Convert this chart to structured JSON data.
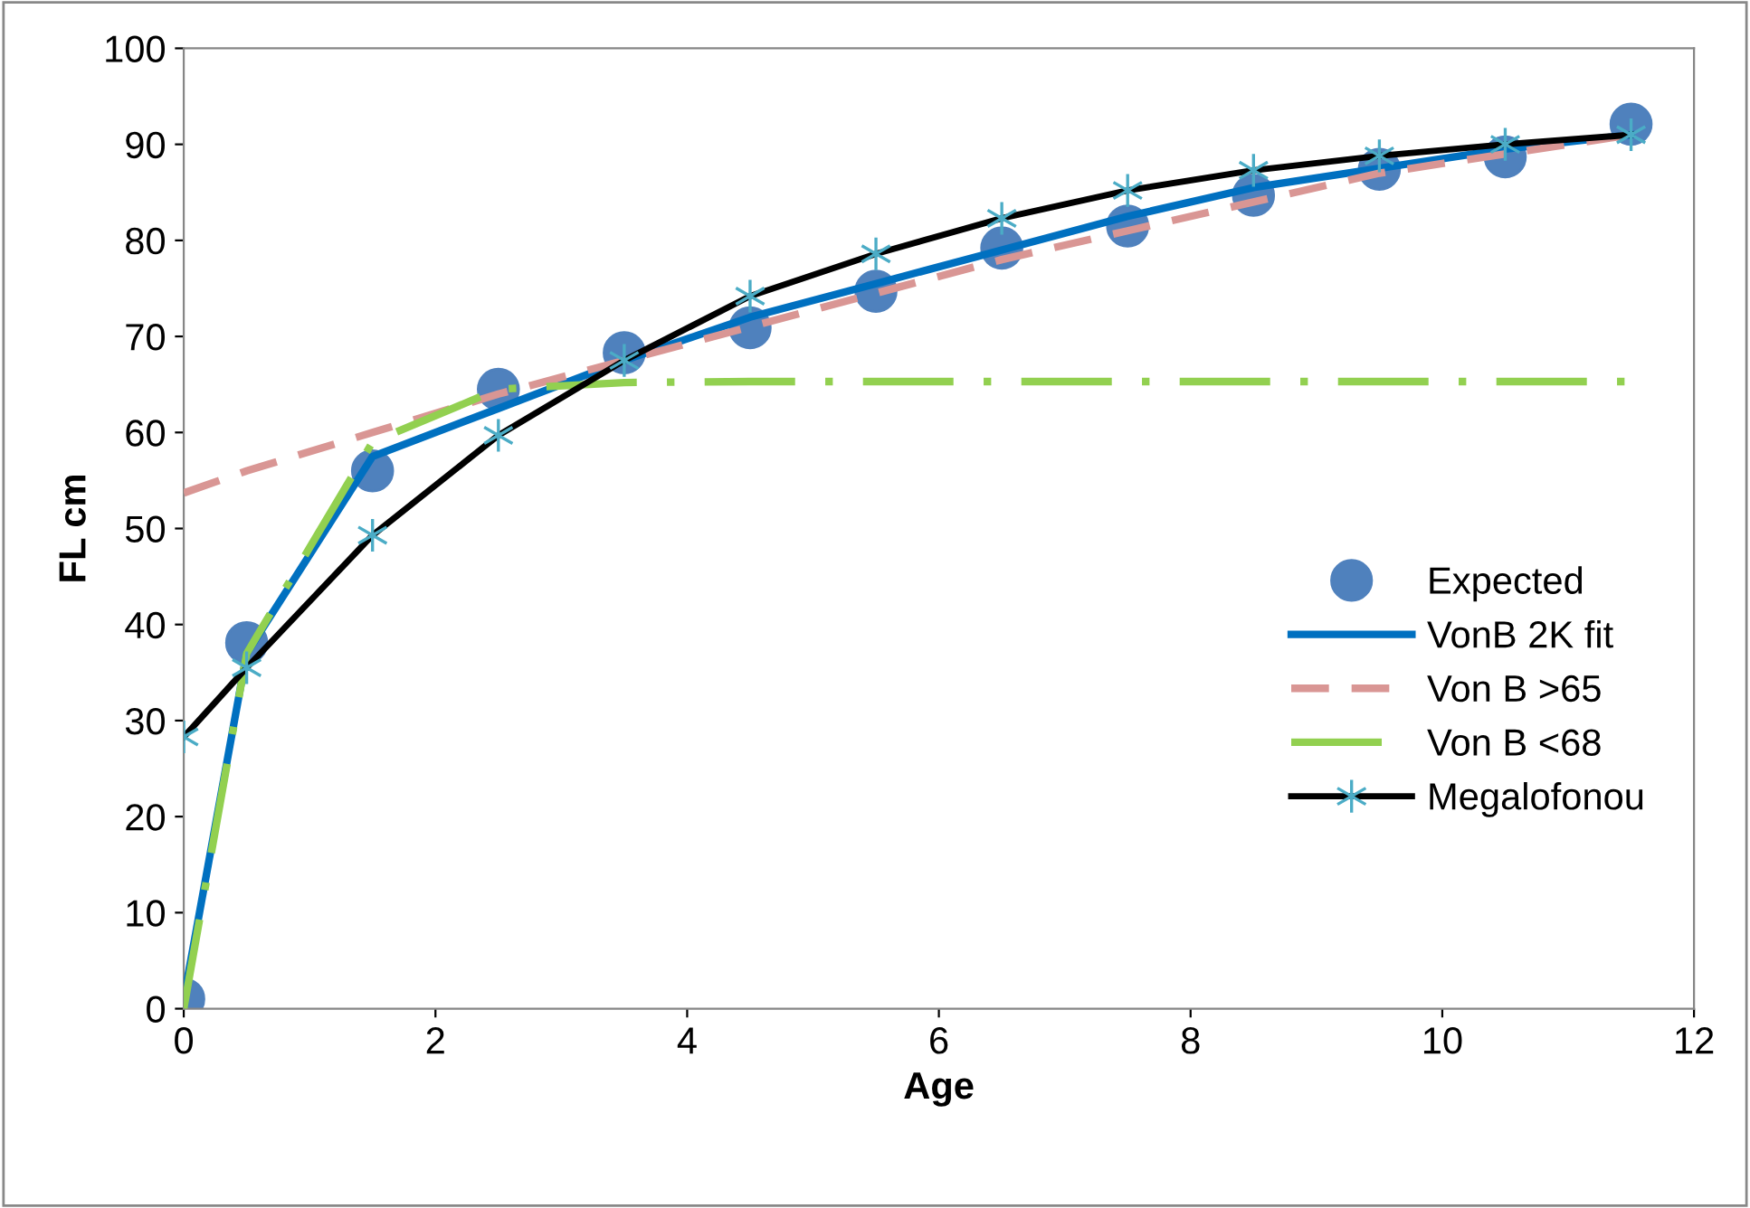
{
  "chart_data": {
    "type": "line",
    "xlabel": "Age",
    "ylabel": "FL cm",
    "xlim": [
      0,
      12
    ],
    "ylim": [
      0,
      100
    ],
    "xticks": [
      0,
      2,
      4,
      6,
      8,
      10,
      12
    ],
    "yticks": [
      0,
      10,
      20,
      30,
      40,
      50,
      60,
      70,
      80,
      90,
      100
    ],
    "grid": false,
    "legend": "right",
    "series": [
      {
        "name": "Expected",
        "type": "scatter",
        "marker": "circle",
        "color": "#4f81bd",
        "x": [
          0,
          0.5,
          1.5,
          2.5,
          3.5,
          4.5,
          5.5,
          6.5,
          7.5,
          8.5,
          9.5,
          10.5,
          11.5
        ],
        "values": [
          1,
          38.1,
          56,
          64.5,
          68.3,
          70.9,
          74.7,
          79.2,
          81.5,
          84.7,
          87.4,
          88.7,
          92.1
        ]
      },
      {
        "name": "VonB 2K fit",
        "line_style": "solid",
        "color": "#0070c0",
        "x": [
          0,
          0.5,
          1.5,
          2.5,
          3.5,
          4.5,
          5.5,
          6.5,
          7.5,
          8.5,
          9.5,
          10.5,
          11.5
        ],
        "values": [
          1,
          37,
          57.5,
          62.5,
          67.5,
          72,
          75.5,
          79,
          82.5,
          85.5,
          87.5,
          89.5,
          91
        ]
      },
      {
        "name": "Von B >65",
        "line_style": "dashed",
        "color": "#d99694",
        "x": [
          0,
          0.5,
          1.5,
          2.5,
          3.5,
          4.5,
          5.5,
          6.5,
          7.5,
          8.5,
          9.5,
          10.5,
          11.5
        ],
        "values": [
          53.7,
          56,
          60,
          64,
          67.5,
          71,
          74.5,
          78,
          81,
          84,
          87,
          89,
          91
        ]
      },
      {
        "name": "Von B <68",
        "line_style": "dashdot",
        "color": "#92d050",
        "x": [
          0,
          0.5,
          1,
          1.5,
          2.5,
          3.5,
          4.5,
          5.5,
          6.5,
          7.5,
          8.5,
          9.5,
          10.5,
          11.5
        ],
        "values": [
          0,
          37,
          48,
          59,
          64.5,
          65.2,
          65.3,
          65.3,
          65.3,
          65.3,
          65.3,
          65.3,
          65.3,
          65.3
        ]
      },
      {
        "name": "Megalofonou",
        "line_style": "solid",
        "marker": "cross",
        "color": "#000000",
        "x": [
          0,
          0.5,
          1.5,
          2.5,
          3.5,
          4.5,
          5.5,
          6.5,
          7.5,
          8.5,
          9.5,
          10.5,
          11.5
        ],
        "values": [
          28.3,
          35.5,
          49.3,
          59.7,
          67.5,
          74.2,
          78.6,
          82.3,
          85.2,
          87.3,
          88.8,
          90,
          91
        ]
      }
    ]
  }
}
